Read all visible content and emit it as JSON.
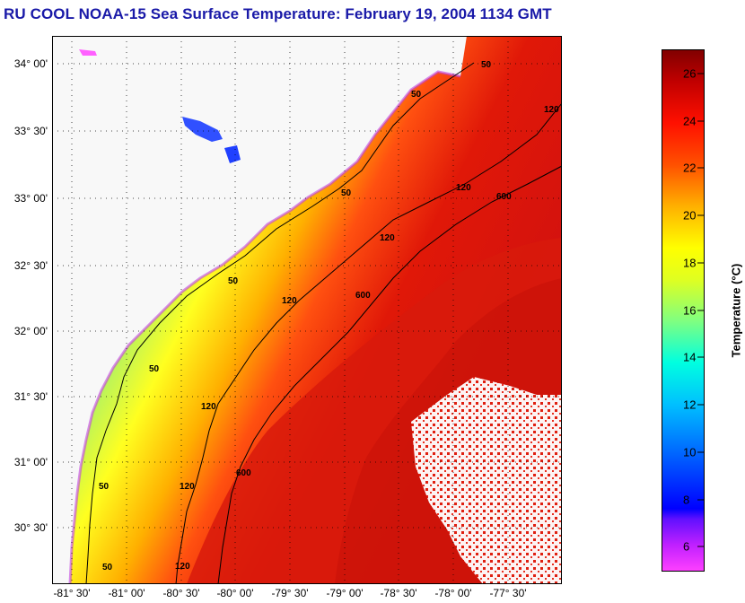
{
  "title": "RU COOL  NOAA-15  Sea Surface Temperature:  February 19, 2004 1134 GMT",
  "map": {
    "lat_labels": [
      "34° 00'",
      "33° 30'",
      "33° 00'",
      "32° 30'",
      "32° 00'",
      "31° 30'",
      "31° 00'",
      "30° 30'"
    ],
    "lon_labels": [
      "-81° 30'",
      "-81° 00'",
      "-80° 30'",
      "-80° 00'",
      "-79° 30'",
      "-79° 00'",
      "-78° 30'",
      "-78° 00'",
      "-77° 30'"
    ],
    "contour_labels": {
      "isobath_50": "50",
      "isobath_120": "120",
      "isobath_600": "600"
    },
    "land_color": "#f8f8f8",
    "cloud_color": "#ffffff"
  },
  "colorbar": {
    "label": "Temperature (°C)",
    "ticks": [
      "26",
      "24",
      "22",
      "20",
      "18",
      "16",
      "14",
      "12",
      "10",
      "8",
      "6"
    ],
    "min": 5,
    "max": 27,
    "colors": [
      "#ff40ff",
      "#8000ff",
      "#0000ff",
      "#0080ff",
      "#00ffff",
      "#80ff80",
      "#ffff00",
      "#ffa000",
      "#ff4000",
      "#d00000",
      "#800000"
    ]
  }
}
